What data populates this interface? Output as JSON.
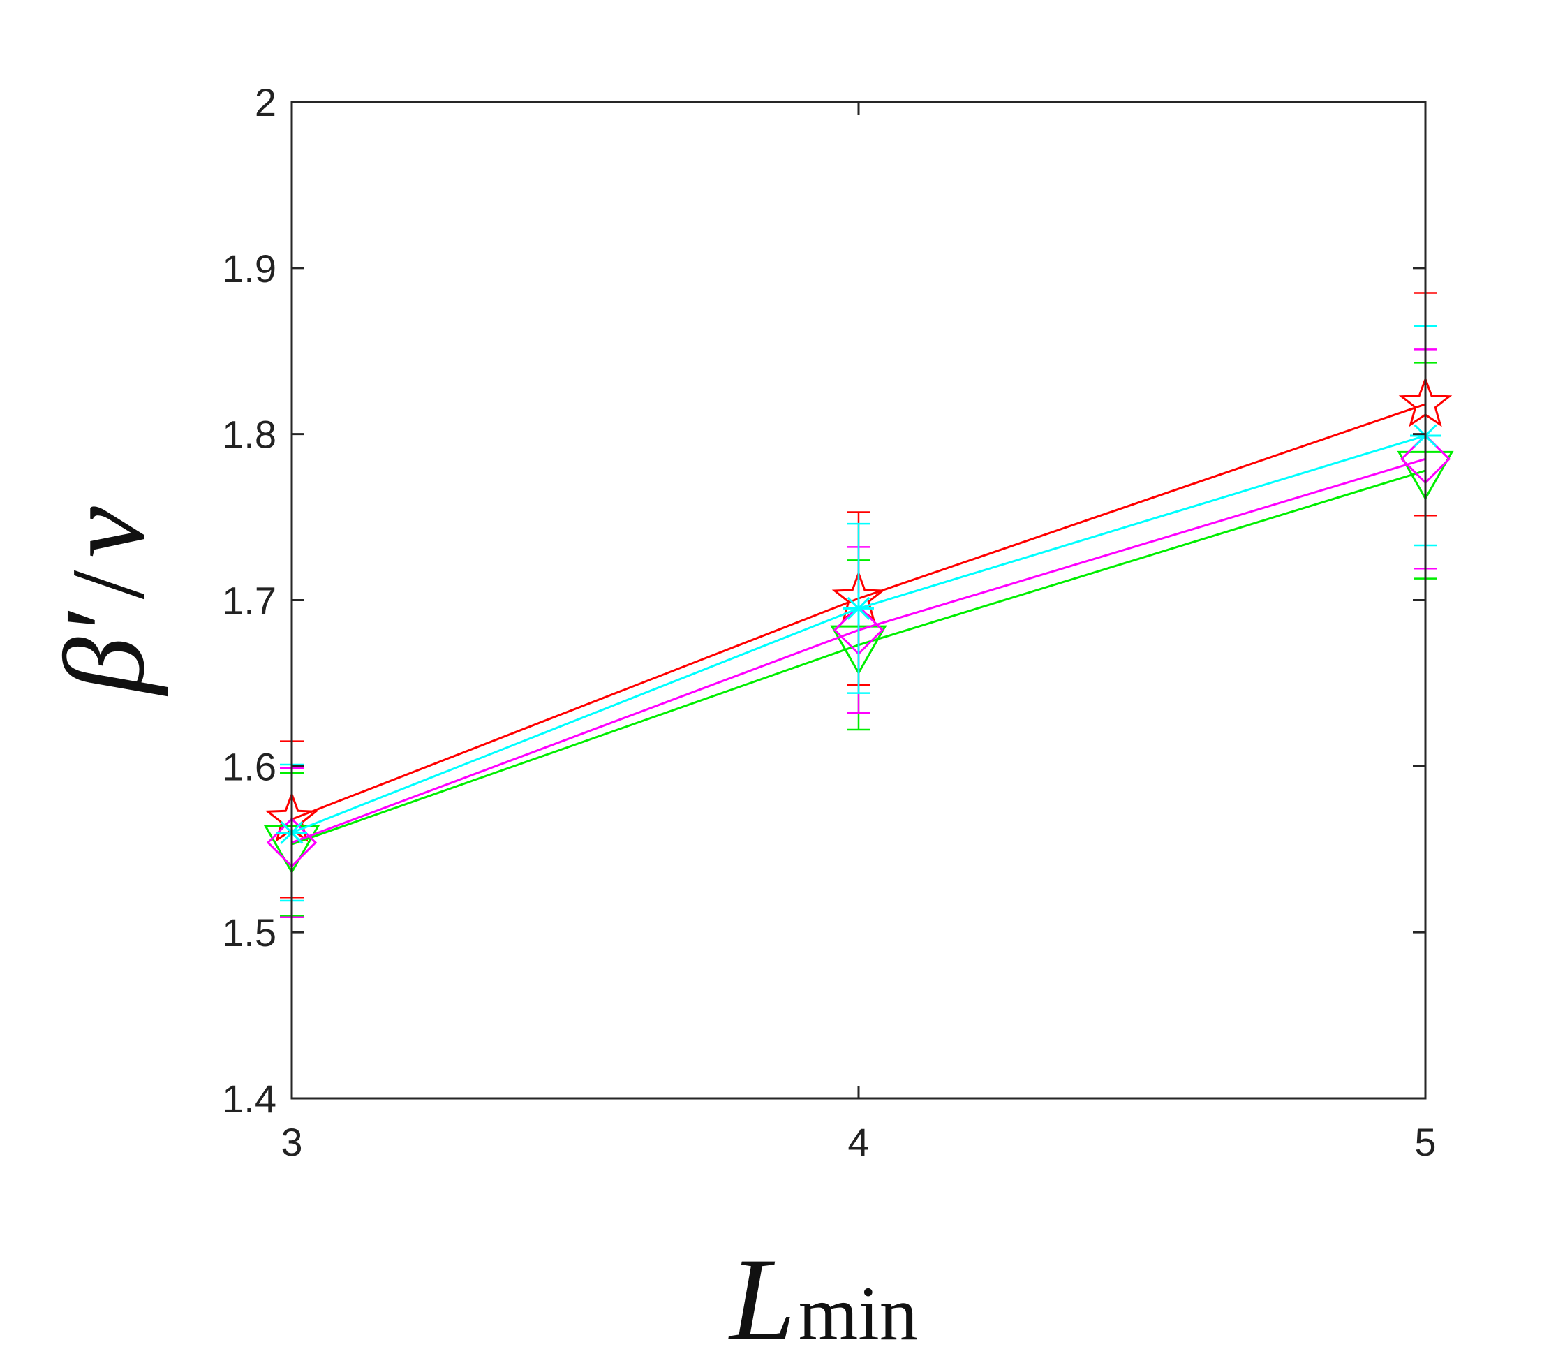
{
  "chart_data": {
    "type": "line",
    "xlabel": "L",
    "xlabel_subscript": "min",
    "ylabel_greek": "β′",
    "ylabel_sep": "/",
    "ylabel_greek2": "ν",
    "xlim": [
      3,
      5
    ],
    "ylim": [
      1.4,
      2.0
    ],
    "x_ticks": [
      3,
      4,
      5
    ],
    "x_tick_labels": [
      "3",
      "4",
      "5"
    ],
    "y_ticks": [
      1.4,
      1.5,
      1.6,
      1.7,
      1.8,
      1.9,
      2.0
    ],
    "y_tick_labels": [
      "1.4",
      "1.5",
      "1.6",
      "1.7",
      "1.8",
      "1.9",
      "2"
    ],
    "grid": false,
    "legend": "none",
    "x": [
      3,
      4,
      5
    ],
    "series": [
      {
        "marker": "star",
        "color": "#ff0000",
        "y": [
          1.568,
          1.701,
          1.818
        ],
        "err": [
          0.047,
          0.052,
          0.067
        ]
      },
      {
        "marker": "triangle-down",
        "color": "#00ee00",
        "y": [
          1.553,
          1.673,
          1.778
        ],
        "err": [
          0.043,
          0.051,
          0.065
        ]
      },
      {
        "marker": "diamond",
        "color": "#ff00ff",
        "y": [
          1.554,
          1.682,
          1.785
        ],
        "err": [
          0.045,
          0.05,
          0.066
        ]
      },
      {
        "marker": "asterisk",
        "color": "#00ffff",
        "y": [
          1.56,
          1.695,
          1.799
        ],
        "err": [
          0.041,
          0.051,
          0.066
        ]
      }
    ]
  }
}
